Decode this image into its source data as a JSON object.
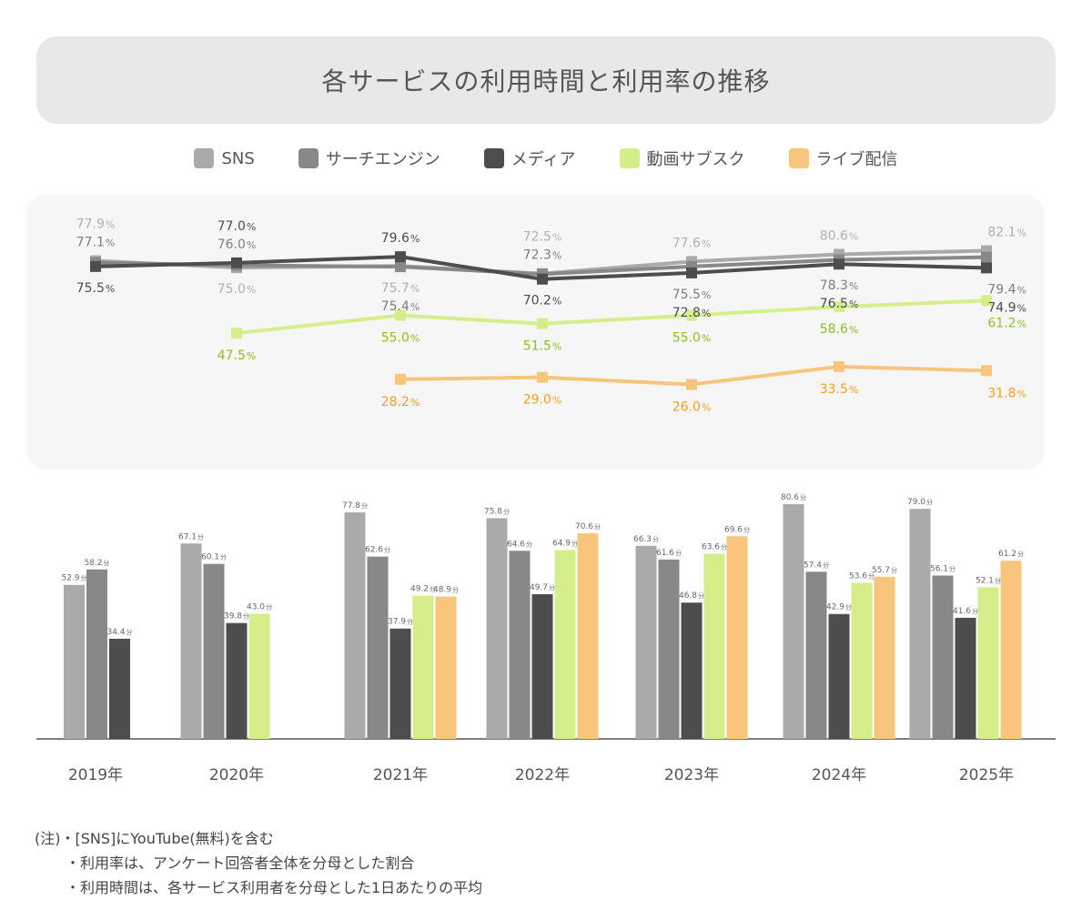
{
  "title": "各サービスの利用時間と利用率の推移",
  "notes": [
    "(注)・[SNS]にYouTube(無料)を含む",
    "・利用率は、アンケート回答者全体を分母とした割合",
    "・利用時間は、各サービス利用者を分母とした1日あたりの平均"
  ],
  "chart_data": [
    {
      "type": "line",
      "categories": [
        "2019年",
        "2020年",
        "2021年",
        "2022年",
        "2023年",
        "2024年",
        "2025年"
      ],
      "unit": "%",
      "series": [
        {
          "name": "SNS",
          "color": "#aaaaaa",
          "values": [
            77.9,
            75.0,
            75.7,
            72.5,
            77.6,
            80.6,
            82.1
          ]
        },
        {
          "name": "サーチエンジン",
          "color": "#888888",
          "values": [
            77.1,
            76.0,
            75.4,
            72.3,
            75.5,
            78.3,
            79.4
          ]
        },
        {
          "name": "メディア",
          "color": "#4d4d4d",
          "values": [
            75.5,
            77.0,
            79.6,
            70.2,
            72.8,
            76.5,
            74.9
          ]
        },
        {
          "name": "動画サブスク",
          "color": "#d4ef8a",
          "label_color": "#8cbf26",
          "values": [
            null,
            47.5,
            55.0,
            51.5,
            55.0,
            58.6,
            61.2
          ]
        },
        {
          "name": "ライブ配信",
          "color": "#f8c57c",
          "label_color": "#f0a020",
          "values": [
            null,
            null,
            28.2,
            29.0,
            26.0,
            33.5,
            31.8
          ]
        }
      ]
    },
    {
      "type": "bar",
      "categories": [
        "2019年",
        "2020年",
        "2021年",
        "2022年",
        "2023年",
        "2024年",
        "2025年"
      ],
      "unit": "分",
      "series": [
        {
          "name": "SNS",
          "color": "#aaaaaa",
          "values": [
            52.9,
            67.1,
            77.8,
            75.8,
            66.3,
            80.6,
            79.0
          ]
        },
        {
          "name": "サーチエンジン",
          "color": "#888888",
          "values": [
            58.2,
            60.1,
            62.6,
            64.6,
            61.6,
            57.4,
            56.1
          ]
        },
        {
          "name": "メディア",
          "color": "#4d4d4d",
          "values": [
            34.4,
            39.8,
            37.9,
            49.7,
            46.8,
            42.9,
            41.6
          ]
        },
        {
          "name": "動画サブスク",
          "color": "#d4ef8a",
          "values": [
            null,
            43.0,
            49.2,
            64.9,
            63.6,
            53.6,
            52.1
          ]
        },
        {
          "name": "ライブ配信",
          "color": "#f8c57c",
          "values": [
            null,
            null,
            48.9,
            70.6,
            69.6,
            55.7,
            61.2
          ]
        }
      ]
    }
  ]
}
